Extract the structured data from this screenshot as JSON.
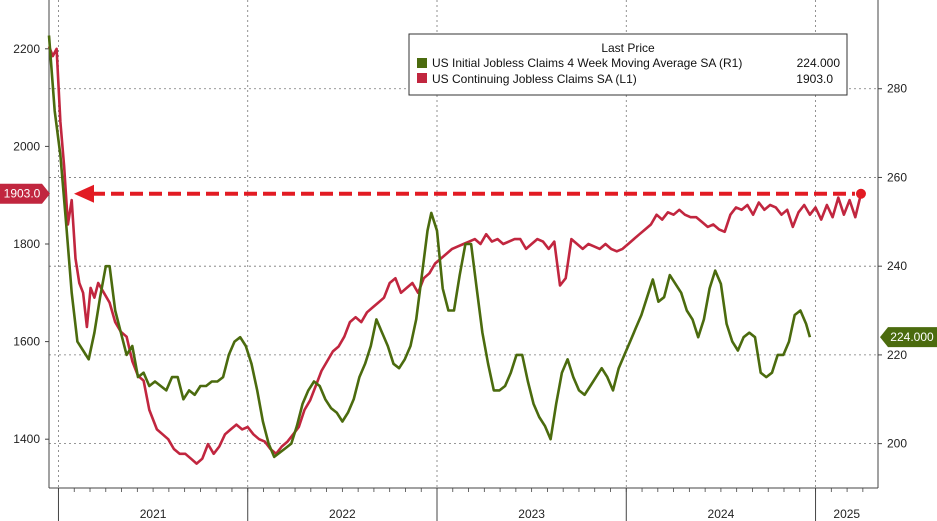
{
  "chart_data": {
    "type": "line",
    "legend": {
      "header": "Last Price",
      "entries": [
        {
          "label": "US Initial Jobless Claims 4 Week Moving Average SA  (R1)",
          "last": "224.000",
          "color": "#4b6b0e"
        },
        {
          "label": "US Continuing Jobless Claims SA  (L1)",
          "last": "1903.0",
          "color": "#c1263f"
        }
      ]
    },
    "x_ticks": [
      "2021",
      "2022",
      "2023",
      "2024",
      "2025"
    ],
    "x_range": [
      2020.95,
      2025.33
    ],
    "left_axis": {
      "ticks": [
        "1400",
        "1600",
        "1800",
        "2000",
        "2200"
      ],
      "range": [
        1300,
        2300
      ]
    },
    "right_axis": {
      "ticks": [
        "200",
        "220",
        "240",
        "260",
        "280"
      ],
      "range": [
        190,
        300
      ]
    },
    "badges": {
      "left": "1903.0",
      "right": "224.000"
    },
    "reference_level": 1903,
    "series": [
      {
        "name": "US Continuing Jobless Claims SA",
        "axis": "left",
        "color": "#c1263f",
        "points": [
          [
            2020.95,
            2205
          ],
          [
            2020.97,
            2185
          ],
          [
            2020.99,
            2200
          ],
          [
            2021.01,
            2050
          ],
          [
            2021.03,
            1960
          ],
          [
            2021.05,
            1840
          ],
          [
            2021.07,
            1890
          ],
          [
            2021.09,
            1770
          ],
          [
            2021.11,
            1720
          ],
          [
            2021.13,
            1700
          ],
          [
            2021.15,
            1630
          ],
          [
            2021.17,
            1710
          ],
          [
            2021.19,
            1690
          ],
          [
            2021.21,
            1720
          ],
          [
            2021.24,
            1700
          ],
          [
            2021.27,
            1680
          ],
          [
            2021.3,
            1640
          ],
          [
            2021.33,
            1620
          ],
          [
            2021.36,
            1610
          ],
          [
            2021.39,
            1560
          ],
          [
            2021.42,
            1530
          ],
          [
            2021.45,
            1520
          ],
          [
            2021.48,
            1460
          ],
          [
            2021.52,
            1420
          ],
          [
            2021.55,
            1410
          ],
          [
            2021.58,
            1400
          ],
          [
            2021.61,
            1380
          ],
          [
            2021.64,
            1370
          ],
          [
            2021.67,
            1370
          ],
          [
            2021.7,
            1360
          ],
          [
            2021.73,
            1350
          ],
          [
            2021.76,
            1360
          ],
          [
            2021.79,
            1390
          ],
          [
            2021.82,
            1370
          ],
          [
            2021.85,
            1385
          ],
          [
            2021.88,
            1410
          ],
          [
            2021.91,
            1420
          ],
          [
            2021.94,
            1430
          ],
          [
            2021.97,
            1420
          ],
          [
            2022.0,
            1425
          ],
          [
            2022.03,
            1410
          ],
          [
            2022.06,
            1400
          ],
          [
            2022.09,
            1395
          ],
          [
            2022.12,
            1380
          ],
          [
            2022.15,
            1370
          ],
          [
            2022.18,
            1385
          ],
          [
            2022.21,
            1395
          ],
          [
            2022.24,
            1410
          ],
          [
            2022.27,
            1425
          ],
          [
            2022.3,
            1460
          ],
          [
            2022.33,
            1480
          ],
          [
            2022.36,
            1510
          ],
          [
            2022.39,
            1540
          ],
          [
            2022.42,
            1560
          ],
          [
            2022.45,
            1580
          ],
          [
            2022.48,
            1590
          ],
          [
            2022.51,
            1610
          ],
          [
            2022.54,
            1640
          ],
          [
            2022.57,
            1650
          ],
          [
            2022.6,
            1640
          ],
          [
            2022.63,
            1660
          ],
          [
            2022.66,
            1670
          ],
          [
            2022.69,
            1680
          ],
          [
            2022.72,
            1690
          ],
          [
            2022.75,
            1720
          ],
          [
            2022.78,
            1730
          ],
          [
            2022.81,
            1700
          ],
          [
            2022.84,
            1710
          ],
          [
            2022.87,
            1720
          ],
          [
            2022.9,
            1700
          ],
          [
            2022.93,
            1730
          ],
          [
            2022.96,
            1740
          ],
          [
            2022.99,
            1760
          ],
          [
            2023.02,
            1770
          ],
          [
            2023.05,
            1780
          ],
          [
            2023.08,
            1790
          ],
          [
            2023.11,
            1795
          ],
          [
            2023.14,
            1800
          ],
          [
            2023.17,
            1805
          ],
          [
            2023.2,
            1810
          ],
          [
            2023.23,
            1800
          ],
          [
            2023.26,
            1820
          ],
          [
            2023.29,
            1805
          ],
          [
            2023.32,
            1810
          ],
          [
            2023.35,
            1800
          ],
          [
            2023.38,
            1805
          ],
          [
            2023.41,
            1810
          ],
          [
            2023.44,
            1810
          ],
          [
            2023.47,
            1790
          ],
          [
            2023.5,
            1800
          ],
          [
            2023.53,
            1810
          ],
          [
            2023.56,
            1805
          ],
          [
            2023.59,
            1790
          ],
          [
            2023.62,
            1805
          ],
          [
            2023.65,
            1715
          ],
          [
            2023.68,
            1730
          ],
          [
            2023.71,
            1810
          ],
          [
            2023.74,
            1800
          ],
          [
            2023.77,
            1790
          ],
          [
            2023.8,
            1800
          ],
          [
            2023.83,
            1795
          ],
          [
            2023.86,
            1790
          ],
          [
            2023.89,
            1800
          ],
          [
            2023.92,
            1790
          ],
          [
            2023.95,
            1785
          ],
          [
            2023.98,
            1790
          ],
          [
            2024.01,
            1800
          ],
          [
            2024.04,
            1810
          ],
          [
            2024.07,
            1820
          ],
          [
            2024.1,
            1830
          ],
          [
            2024.13,
            1840
          ],
          [
            2024.16,
            1860
          ],
          [
            2024.19,
            1850
          ],
          [
            2024.22,
            1865
          ],
          [
            2024.25,
            1860
          ],
          [
            2024.28,
            1870
          ],
          [
            2024.31,
            1860
          ],
          [
            2024.34,
            1855
          ],
          [
            2024.37,
            1855
          ],
          [
            2024.4,
            1845
          ],
          [
            2024.43,
            1835
          ],
          [
            2024.46,
            1840
          ],
          [
            2024.49,
            1830
          ],
          [
            2024.52,
            1825
          ],
          [
            2024.55,
            1860
          ],
          [
            2024.58,
            1875
          ],
          [
            2024.61,
            1870
          ],
          [
            2024.64,
            1880
          ],
          [
            2024.67,
            1860
          ],
          [
            2024.7,
            1885
          ],
          [
            2024.73,
            1870
          ],
          [
            2024.76,
            1880
          ],
          [
            2024.79,
            1875
          ],
          [
            2024.82,
            1860
          ],
          [
            2024.85,
            1870
          ],
          [
            2024.88,
            1835
          ],
          [
            2024.91,
            1865
          ],
          [
            2024.94,
            1880
          ],
          [
            2024.97,
            1860
          ],
          [
            2025.0,
            1875
          ],
          [
            2025.03,
            1850
          ],
          [
            2025.06,
            1880
          ],
          [
            2025.09,
            1855
          ],
          [
            2025.12,
            1895
          ],
          [
            2025.15,
            1860
          ],
          [
            2025.18,
            1890
          ],
          [
            2025.21,
            1855
          ],
          [
            2025.24,
            1903
          ]
        ]
      },
      {
        "name": "US Initial Jobless Claims 4 Week Moving Average SA",
        "axis": "right",
        "color": "#4b6b0e",
        "points": [
          [
            2020.95,
            292
          ],
          [
            2020.98,
            275
          ],
          [
            2021.01,
            265
          ],
          [
            2021.04,
            250
          ],
          [
            2021.07,
            234
          ],
          [
            2021.1,
            223
          ],
          [
            2021.13,
            221
          ],
          [
            2021.16,
            219
          ],
          [
            2021.19,
            225
          ],
          [
            2021.22,
            233
          ],
          [
            2021.25,
            240
          ],
          [
            2021.27,
            240
          ],
          [
            2021.3,
            230
          ],
          [
            2021.33,
            225
          ],
          [
            2021.36,
            220
          ],
          [
            2021.39,
            222
          ],
          [
            2021.42,
            215
          ],
          [
            2021.45,
            216
          ],
          [
            2021.48,
            213
          ],
          [
            2021.51,
            214
          ],
          [
            2021.54,
            213
          ],
          [
            2021.57,
            212
          ],
          [
            2021.6,
            215
          ],
          [
            2021.63,
            215
          ],
          [
            2021.66,
            210
          ],
          [
            2021.69,
            212
          ],
          [
            2021.72,
            211
          ],
          [
            2021.75,
            213
          ],
          [
            2021.78,
            213
          ],
          [
            2021.81,
            214
          ],
          [
            2021.84,
            214
          ],
          [
            2021.87,
            215
          ],
          [
            2021.9,
            220
          ],
          [
            2021.93,
            223
          ],
          [
            2021.96,
            224
          ],
          [
            2021.99,
            222
          ],
          [
            2022.02,
            218
          ],
          [
            2022.05,
            212
          ],
          [
            2022.08,
            205
          ],
          [
            2022.11,
            200
          ],
          [
            2022.14,
            197
          ],
          [
            2022.17,
            198
          ],
          [
            2022.2,
            199
          ],
          [
            2022.23,
            200
          ],
          [
            2022.26,
            204
          ],
          [
            2022.29,
            209
          ],
          [
            2022.32,
            212
          ],
          [
            2022.35,
            214
          ],
          [
            2022.38,
            213
          ],
          [
            2022.41,
            210
          ],
          [
            2022.44,
            208
          ],
          [
            2022.47,
            207
          ],
          [
            2022.5,
            205
          ],
          [
            2022.53,
            207
          ],
          [
            2022.56,
            210
          ],
          [
            2022.59,
            215
          ],
          [
            2022.62,
            218
          ],
          [
            2022.65,
            222
          ],
          [
            2022.68,
            228
          ],
          [
            2022.71,
            225
          ],
          [
            2022.74,
            222
          ],
          [
            2022.77,
            218
          ],
          [
            2022.8,
            217
          ],
          [
            2022.83,
            219
          ],
          [
            2022.86,
            222
          ],
          [
            2022.89,
            228
          ],
          [
            2022.92,
            238
          ],
          [
            2022.95,
            248
          ],
          [
            2022.97,
            252
          ],
          [
            2023.0,
            248
          ],
          [
            2023.03,
            235
          ],
          [
            2023.06,
            230
          ],
          [
            2023.09,
            230
          ],
          [
            2023.12,
            238
          ],
          [
            2023.15,
            245
          ],
          [
            2023.18,
            245
          ],
          [
            2023.21,
            235
          ],
          [
            2023.24,
            225
          ],
          [
            2023.27,
            218
          ],
          [
            2023.3,
            212
          ],
          [
            2023.33,
            212
          ],
          [
            2023.36,
            213
          ],
          [
            2023.39,
            216
          ],
          [
            2023.42,
            220
          ],
          [
            2023.45,
            220
          ],
          [
            2023.48,
            214
          ],
          [
            2023.51,
            209
          ],
          [
            2023.54,
            206
          ],
          [
            2023.57,
            204
          ],
          [
            2023.6,
            201
          ],
          [
            2023.63,
            209
          ],
          [
            2023.66,
            216
          ],
          [
            2023.69,
            219
          ],
          [
            2023.72,
            215
          ],
          [
            2023.75,
            212
          ],
          [
            2023.78,
            211
          ],
          [
            2023.81,
            213
          ],
          [
            2023.84,
            215
          ],
          [
            2023.87,
            217
          ],
          [
            2023.9,
            215
          ],
          [
            2023.93,
            212
          ],
          [
            2023.96,
            217
          ],
          [
            2023.99,
            220
          ],
          [
            2024.02,
            223
          ],
          [
            2024.05,
            226
          ],
          [
            2024.08,
            229
          ],
          [
            2024.11,
            233
          ],
          [
            2024.14,
            237
          ],
          [
            2024.17,
            232
          ],
          [
            2024.2,
            233
          ],
          [
            2024.23,
            238
          ],
          [
            2024.26,
            236
          ],
          [
            2024.29,
            234
          ],
          [
            2024.32,
            230
          ],
          [
            2024.35,
            228
          ],
          [
            2024.38,
            224
          ],
          [
            2024.41,
            228
          ],
          [
            2024.44,
            235
          ],
          [
            2024.47,
            239
          ],
          [
            2024.5,
            236
          ],
          [
            2024.53,
            227
          ],
          [
            2024.56,
            223
          ],
          [
            2024.59,
            221
          ],
          [
            2024.62,
            224
          ],
          [
            2024.65,
            225
          ],
          [
            2024.68,
            224
          ],
          [
            2024.71,
            216
          ],
          [
            2024.74,
            215
          ],
          [
            2024.77,
            216
          ],
          [
            2024.8,
            220
          ],
          [
            2024.83,
            220
          ],
          [
            2024.86,
            223
          ],
          [
            2024.89,
            229
          ],
          [
            2024.92,
            230
          ],
          [
            2024.95,
            227
          ],
          [
            2024.97,
            224
          ]
        ]
      }
    ]
  }
}
